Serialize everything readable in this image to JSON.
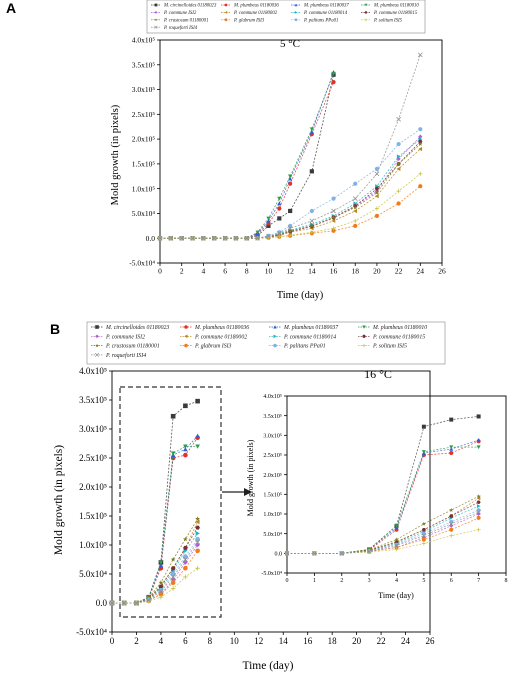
{
  "panels": [
    {
      "letter": "A",
      "temperature": "5 °C",
      "xlabel": "Time (day)",
      "ylabel": "Mold growth (in pixels)"
    },
    {
      "letter": "B",
      "temperature": "16 °C",
      "xlabel": "Time (day)",
      "ylabel": "Mold growth (in pixels)",
      "inset_xlabel": "Time (day)",
      "inset_ylabel": "Mold growth (in pixels)"
    }
  ],
  "legend_entries": [
    {
      "name": "M. circinelloides 01180023",
      "color": "#3a3a3a",
      "marker": "square"
    },
    {
      "name": "M. plumbeus 01180036",
      "color": "#e2312a",
      "marker": "circle"
    },
    {
      "name": "M. plumbeus 01180037",
      "color": "#2f5fd0",
      "marker": "triangle-up"
    },
    {
      "name": "M. plumbeus 01180010",
      "color": "#2e9a4f",
      "marker": "triangle-down"
    },
    {
      "name": "P. commune ISI2",
      "color": "#b05fd6",
      "marker": "diamond"
    },
    {
      "name": "P. commune 01180002",
      "color": "#b8861f",
      "marker": "triangle-left"
    },
    {
      "name": "P. commune 01180014",
      "color": "#1fb5c4",
      "marker": "triangle-right"
    },
    {
      "name": "P. commune 01180015",
      "color": "#7a2f3a",
      "marker": "hexagon"
    },
    {
      "name": "P. crustosum 01180001",
      "color": "#7d7d1e",
      "marker": "star"
    },
    {
      "name": "P. glabrum ISI3",
      "color": "#f07a1c",
      "marker": "circle"
    },
    {
      "name": "P. palitans PPa01",
      "color": "#7fb3e6",
      "marker": "circle"
    },
    {
      "name": "P. solitum ISI5",
      "color": "#c9c23a",
      "marker": "plus"
    },
    {
      "name": "P. roqueforti ISI4",
      "color": "#8c8c8c",
      "marker": "x"
    }
  ],
  "chart_data": [
    {
      "type": "line",
      "panel": "A",
      "title": "5 °C",
      "xlabel": "Time (day)",
      "ylabel": "Mold growth (in pixels)",
      "xlim": [
        0,
        26
      ],
      "ylim": [
        -50000,
        400000
      ],
      "x_ticks": [
        "0",
        "2",
        "4",
        "6",
        "8",
        "10",
        "12",
        "14",
        "16",
        "18",
        "20",
        "22",
        "24",
        "26"
      ],
      "y_ticks": [
        "-5.0x10⁴",
        "0.0",
        "5.0x10⁴",
        "1.0x10⁵",
        "1.5x10⁵",
        "2.0x10⁵",
        "2.5x10⁵",
        "3.0x10⁵",
        "3.5x10⁵",
        "4.0x10⁵"
      ],
      "grid": false,
      "legend_position": "top",
      "x": [
        0,
        1,
        2,
        3,
        4,
        5,
        6,
        7,
        8,
        9,
        10,
        11,
        12,
        14,
        16,
        18,
        20,
        22,
        24
      ],
      "series": [
        {
          "name": "M. circinelloides 01180023",
          "values": [
            0,
            0,
            0,
            0,
            0,
            0,
            0,
            0,
            0,
            5000,
            25000,
            40000,
            55000,
            135000,
            330000,
            null,
            null,
            null,
            null
          ]
        },
        {
          "name": "M. plumbeus 01180036",
          "values": [
            0,
            0,
            0,
            0,
            0,
            0,
            0,
            0,
            0,
            8000,
            30000,
            60000,
            110000,
            210000,
            315000,
            null,
            null,
            null,
            null
          ]
        },
        {
          "name": "M. plumbeus 01180037",
          "values": [
            0,
            0,
            0,
            0,
            0,
            0,
            0,
            0,
            0,
            10000,
            35000,
            70000,
            120000,
            215000,
            335000,
            null,
            null,
            null,
            null
          ]
        },
        {
          "name": "M. plumbeus 01180010",
          "values": [
            0,
            0,
            0,
            0,
            0,
            0,
            0,
            0,
            0,
            12000,
            40000,
            80000,
            125000,
            220000,
            332000,
            null,
            null,
            null,
            null
          ]
        },
        {
          "name": "P. commune ISI2",
          "values": [
            0,
            0,
            0,
            0,
            0,
            0,
            0,
            0,
            0,
            0,
            3000,
            8000,
            15000,
            25000,
            40000,
            65000,
            95000,
            160000,
            205000
          ]
        },
        {
          "name": "P. commune 01180002",
          "values": [
            0,
            0,
            0,
            0,
            0,
            0,
            0,
            0,
            0,
            0,
            2000,
            6000,
            12000,
            20000,
            35000,
            55000,
            85000,
            140000,
            180000
          ]
        },
        {
          "name": "P. commune 01180014",
          "values": [
            0,
            0,
            0,
            0,
            0,
            0,
            0,
            0,
            0,
            0,
            3000,
            9000,
            16000,
            28000,
            45000,
            70000,
            105000,
            165000,
            200000
          ]
        },
        {
          "name": "P. commune 01180015",
          "values": [
            0,
            0,
            0,
            0,
            0,
            0,
            0,
            0,
            0,
            0,
            2000,
            6000,
            13000,
            24000,
            42000,
            65000,
            100000,
            150000,
            195000
          ]
        },
        {
          "name": "P. crustosum 01180001",
          "values": [
            0,
            0,
            0,
            0,
            0,
            0,
            0,
            0,
            0,
            0,
            2000,
            7000,
            14000,
            25000,
            42000,
            62000,
            92000,
            150000,
            190000
          ]
        },
        {
          "name": "P. glabrum ISI3",
          "values": [
            0,
            0,
            0,
            0,
            0,
            0,
            0,
            0,
            0,
            0,
            1000,
            3000,
            5000,
            10000,
            15000,
            25000,
            45000,
            70000,
            105000
          ]
        },
        {
          "name": "P. palitans PPa01",
          "values": [
            0,
            0,
            0,
            0,
            0,
            0,
            0,
            0,
            0,
            0,
            5000,
            12000,
            25000,
            55000,
            80000,
            110000,
            140000,
            190000,
            220000
          ]
        },
        {
          "name": "P. solitum ISI5",
          "values": [
            0,
            0,
            0,
            0,
            0,
            0,
            0,
            0,
            0,
            0,
            1000,
            3000,
            6000,
            12000,
            20000,
            35000,
            60000,
            95000,
            130000
          ]
        },
        {
          "name": "P. roqueforti ISI4",
          "values": [
            0,
            0,
            0,
            0,
            0,
            0,
            0,
            0,
            0,
            0,
            4000,
            10000,
            20000,
            35000,
            55000,
            80000,
            130000,
            240000,
            370000
          ]
        }
      ]
    },
    {
      "type": "line",
      "panel": "B",
      "title": "16 °C",
      "xlabel": "Time (day)",
      "ylabel": "Mold growth (in pixels)",
      "xlim": [
        0,
        26
      ],
      "ylim": [
        -50000,
        400000
      ],
      "x_ticks": [
        "0",
        "2",
        "4",
        "6",
        "8",
        "10",
        "12",
        "14",
        "16",
        "18",
        "20",
        "22",
        "24",
        "26"
      ],
      "y_ticks": [
        "-5.0x10⁴",
        "0.0",
        "5.0x10⁴",
        "1.0x10⁵",
        "1.5x10⁵",
        "2.0x10⁵",
        "2.5x10⁵",
        "3.0x10⁵",
        "3.5x10⁵",
        "4.0x10⁵"
      ],
      "grid": false,
      "legend_position": "top",
      "x": [
        0,
        1,
        2,
        3,
        4,
        5,
        6,
        7
      ],
      "series": [
        {
          "name": "M. circinelloides 01180023",
          "values": [
            0,
            0,
            0,
            10000,
            70000,
            322000,
            340000,
            348000
          ]
        },
        {
          "name": "M. plumbeus 01180036",
          "values": [
            0,
            0,
            0,
            8000,
            60000,
            250000,
            255000,
            285000
          ]
        },
        {
          "name": "M. plumbeus 01180037",
          "values": [
            0,
            0,
            0,
            9000,
            65000,
            255000,
            265000,
            288000
          ]
        },
        {
          "name": "M. plumbeus 01180010",
          "values": [
            0,
            0,
            0,
            10000,
            70000,
            258000,
            270000,
            270000
          ]
        },
        {
          "name": "P. commune ISI2",
          "values": [
            0,
            0,
            0,
            5000,
            15000,
            40000,
            70000,
            100000
          ]
        },
        {
          "name": "P. commune 01180002",
          "values": [
            0,
            0,
            0,
            8000,
            30000,
            60000,
            95000,
            140000
          ]
        },
        {
          "name": "P. commune 01180014",
          "values": [
            0,
            0,
            0,
            6000,
            25000,
            55000,
            90000,
            120000
          ]
        },
        {
          "name": "P. commune 01180015",
          "values": [
            0,
            0,
            0,
            7000,
            28000,
            60000,
            95000,
            130000
          ]
        },
        {
          "name": "P. crustosum 01180001",
          "values": [
            0,
            0,
            0,
            9000,
            35000,
            75000,
            110000,
            145000
          ]
        },
        {
          "name": "P. glabrum ISI3",
          "values": [
            0,
            0,
            0,
            4000,
            15000,
            35000,
            60000,
            90000
          ]
        },
        {
          "name": "P. palitans PPa01",
          "values": [
            0,
            0,
            0,
            6000,
            22000,
            50000,
            80000,
            110000
          ]
        },
        {
          "name": "P. solitum ISI5",
          "values": [
            0,
            0,
            0,
            3000,
            10000,
            25000,
            45000,
            60000
          ]
        },
        {
          "name": "P. roqueforti ISI4",
          "values": [
            0,
            0,
            0,
            5000,
            20000,
            45000,
            75000,
            105000
          ]
        }
      ]
    },
    {
      "type": "line",
      "panel": "B-inset",
      "xlabel": "Time (day)",
      "ylabel": "Mold growth (in pixels)",
      "xlim": [
        0,
        8
      ],
      "ylim": [
        -50000,
        400000
      ],
      "x_ticks": [
        "0",
        "1",
        "2",
        "3",
        "4",
        "5",
        "6",
        "7",
        "8"
      ],
      "y_ticks": [
        "-5.0x10⁴",
        "0.0",
        "5.0x10⁴",
        "1.0x10⁵",
        "1.5x10⁵",
        "2.0x10⁵",
        "2.5x10⁵",
        "3.0x10⁵",
        "3.5x10⁵",
        "4.0x10⁵"
      ],
      "grid": false,
      "same_data_as": "B"
    }
  ]
}
